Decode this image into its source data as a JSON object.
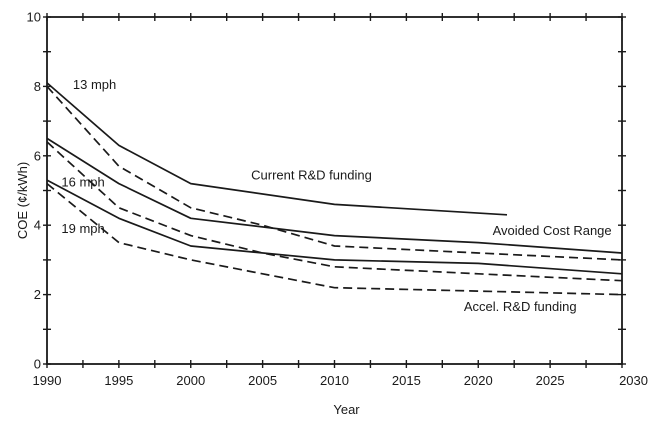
{
  "chart_data": {
    "type": "line",
    "title": "",
    "xlabel": "Year",
    "ylabel": "COE (¢/kWh)",
    "xlim": [
      1990,
      2030
    ],
    "ylim": [
      0,
      10
    ],
    "x_ticks": [
      1990,
      1995,
      2000,
      2005,
      2010,
      2015,
      2020,
      2025,
      2030
    ],
    "x_tick_labels": [
      "1990",
      "1995",
      "2000",
      "2005",
      "2010",
      "2015",
      "2020",
      "2025",
      "2030"
    ],
    "y_ticks": [
      0,
      2,
      4,
      6,
      8,
      10
    ],
    "y_tick_labels": [
      "0",
      "2",
      "4",
      "6",
      "8",
      "10"
    ],
    "grid": false,
    "series": [
      {
        "name": "13 mph",
        "style": "solid",
        "x": [
          1990,
          1995,
          2000,
          2010,
          2022
        ],
        "y": [
          8.1,
          6.3,
          5.2,
          4.6,
          4.3
        ]
      },
      {
        "name": "16 mph",
        "style": "solid",
        "x": [
          1990,
          1995,
          2000,
          2010,
          2020,
          2030
        ],
        "y": [
          6.5,
          5.2,
          4.2,
          3.7,
          3.5,
          3.2
        ]
      },
      {
        "name": "19 mph",
        "style": "solid",
        "x": [
          1990,
          1995,
          2000,
          2010,
          2020,
          2030
        ],
        "y": [
          5.3,
          4.2,
          3.4,
          3.0,
          2.9,
          2.6
        ]
      },
      {
        "style": "dashed",
        "x": [
          1990,
          1995,
          2000,
          2005,
          2010,
          2020,
          2030
        ],
        "y": [
          8.0,
          5.7,
          4.5,
          4.0,
          3.4,
          3.2,
          3.0
        ]
      },
      {
        "style": "dashed",
        "x": [
          1990,
          1995,
          2000,
          2005,
          2010,
          2020,
          2030
        ],
        "y": [
          6.4,
          4.5,
          3.7,
          3.2,
          2.8,
          2.6,
          2.4
        ]
      },
      {
        "style": "dashed",
        "x": [
          1990,
          1995,
          2000,
          2005,
          2010,
          2020,
          2030
        ],
        "y": [
          5.2,
          3.5,
          3.0,
          2.6,
          2.2,
          2.1,
          2.0
        ]
      }
    ],
    "annotations": [
      {
        "text": "13 mph",
        "x": 1991.8,
        "y": 8.05
      },
      {
        "text": "16 mph",
        "x": 1991.0,
        "y": 5.25
      },
      {
        "text": "19 mph",
        "x": 1991.0,
        "y": 3.9
      },
      {
        "text": "Current R&D funding",
        "x": 2004.2,
        "y": 5.45
      },
      {
        "text": "Avoided Cost Range",
        "x": 2021.0,
        "y": 3.85
      },
      {
        "text": "Accel. R&D funding",
        "x": 2019.0,
        "y": 1.65
      }
    ]
  }
}
